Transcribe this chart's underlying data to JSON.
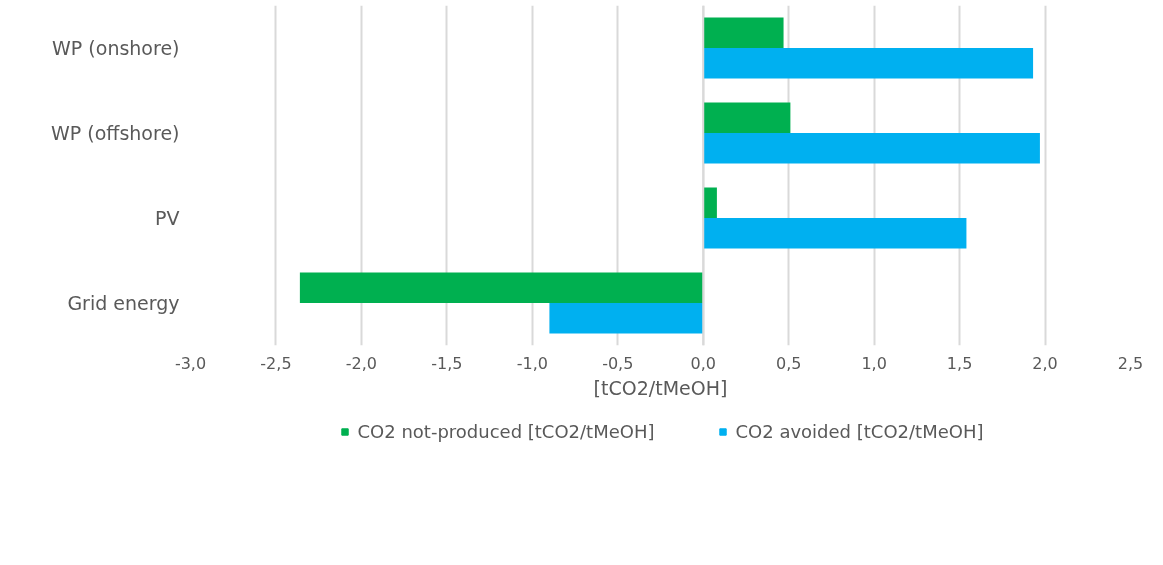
{
  "chart_data": {
    "type": "bar",
    "orientation": "horizontal",
    "xlabel": "[tCO2/tMeOH]",
    "categories": [
      "WP (onshore)",
      "WP (offshore)",
      "PV",
      "Grid energy"
    ],
    "series": [
      {
        "name": "CO2 not-produced [tCO2/tMeOH]",
        "color": "#00b050",
        "values": [
          0.47,
          0.51,
          0.08,
          -2.36
        ]
      },
      {
        "name": "CO2 avoided [tCO2/tMeOH]",
        "color": "#00b0f0",
        "values": [
          1.93,
          1.97,
          1.54,
          -0.9
        ]
      }
    ],
    "xlim": [
      -3.0,
      2.5
    ],
    "xticks": [
      {
        "value": -3.0,
        "label": "-3,0"
      },
      {
        "value": -2.5,
        "label": "-2,5"
      },
      {
        "value": -2.0,
        "label": "-2,0"
      },
      {
        "value": -1.5,
        "label": "-1,5"
      },
      {
        "value": -1.0,
        "label": "-1,0"
      },
      {
        "value": -0.5,
        "label": "-0,5"
      },
      {
        "value": 0.0,
        "label": "0,0"
      },
      {
        "value": 0.5,
        "label": "0,5"
      },
      {
        "value": 1.0,
        "label": "1,0"
      },
      {
        "value": 1.5,
        "label": "1,5"
      },
      {
        "value": 2.0,
        "label": "2,0"
      },
      {
        "value": 2.5,
        "label": "2,5"
      }
    ],
    "grid": "x",
    "legend": "bottom"
  }
}
